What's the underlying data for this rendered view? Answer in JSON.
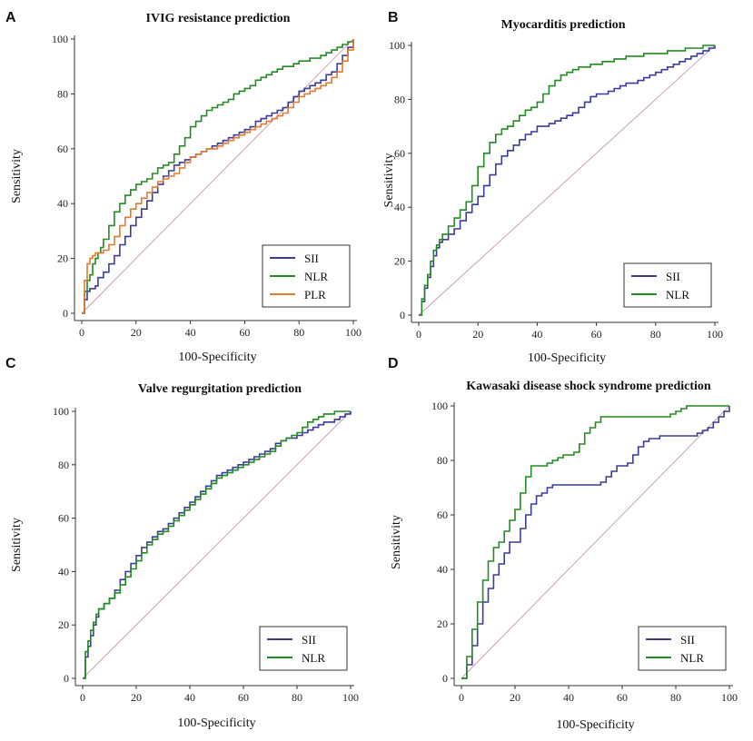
{
  "chart_data": [
    {
      "type": "line",
      "panel": "A",
      "title": "IVIG resistance prediction",
      "xlabel": "100-Specificity",
      "ylabel": "Sensitivity",
      "xlim": [
        0,
        100
      ],
      "ylim": [
        0,
        100
      ],
      "ticks": [
        "0",
        "20",
        "40",
        "60",
        "80",
        "100"
      ],
      "legend_position": "bottom-right",
      "reference_line": true,
      "series": [
        {
          "name": "SII",
          "color": "#3b3b9e",
          "x": [
            0,
            1,
            2,
            3,
            5,
            6,
            8,
            10,
            12,
            14,
            16,
            18,
            20,
            22,
            24,
            26,
            28,
            30,
            32,
            34,
            36,
            38,
            40,
            42,
            44,
            46,
            48,
            50,
            52,
            54,
            56,
            58,
            60,
            62,
            64,
            66,
            68,
            70,
            72,
            74,
            76,
            78,
            80,
            82,
            84,
            86,
            88,
            90,
            92,
            94,
            96,
            98,
            100
          ],
          "y": [
            0,
            5,
            8,
            9,
            10,
            13,
            15,
            18,
            21,
            25,
            28,
            32,
            35,
            38,
            41,
            44,
            47,
            50,
            52,
            54,
            55,
            56,
            57,
            58,
            59,
            60,
            61,
            62,
            63,
            64,
            65,
            66,
            67,
            68,
            70,
            71,
            72,
            73,
            74,
            75,
            77,
            79,
            81,
            82,
            83,
            84,
            85,
            87,
            88,
            91,
            94,
            97,
            100
          ]
        },
        {
          "name": "NLR",
          "color": "#218c21",
          "x": [
            0,
            1,
            2,
            3,
            4,
            5,
            6,
            7,
            8,
            10,
            12,
            14,
            16,
            18,
            20,
            22,
            24,
            26,
            28,
            30,
            32,
            34,
            36,
            38,
            40,
            42,
            44,
            46,
            48,
            50,
            52,
            54,
            56,
            58,
            60,
            62,
            64,
            66,
            68,
            70,
            72,
            74,
            76,
            78,
            80,
            82,
            84,
            86,
            88,
            90,
            92,
            94,
            96,
            98,
            100
          ],
          "y": [
            0,
            8,
            12,
            14,
            18,
            20,
            22,
            24,
            27,
            32,
            37,
            40,
            43,
            45,
            47,
            48,
            49,
            51,
            53,
            54,
            55,
            58,
            61,
            64,
            68,
            70,
            72,
            74,
            75,
            76,
            77,
            78,
            80,
            81,
            82,
            83,
            85,
            86,
            87,
            88,
            89,
            90,
            90,
            91,
            92,
            92,
            93,
            93,
            94,
            95,
            96,
            97,
            98,
            99,
            100
          ]
        },
        {
          "name": "PLR",
          "color": "#e8782b",
          "x": [
            0,
            1,
            2,
            3,
            4,
            5,
            6,
            8,
            10,
            12,
            14,
            16,
            18,
            20,
            22,
            24,
            26,
            28,
            30,
            32,
            34,
            36,
            38,
            40,
            42,
            44,
            46,
            48,
            50,
            52,
            54,
            56,
            58,
            60,
            62,
            64,
            66,
            68,
            70,
            72,
            74,
            76,
            78,
            80,
            82,
            84,
            86,
            88,
            90,
            92,
            94,
            96,
            98,
            100
          ],
          "y": [
            0,
            12,
            18,
            20,
            21,
            22,
            22,
            23,
            25,
            28,
            32,
            35,
            38,
            40,
            42,
            44,
            46,
            48,
            49,
            50,
            51,
            53,
            55,
            57,
            58,
            59,
            60,
            60,
            61,
            62,
            63,
            64,
            65,
            66,
            67,
            68,
            69,
            70,
            71,
            72,
            73,
            75,
            77,
            79,
            80,
            81,
            82,
            83,
            84,
            86,
            88,
            92,
            96,
            100
          ]
        }
      ]
    },
    {
      "type": "line",
      "panel": "B",
      "title": "Myocarditis prediction",
      "xlabel": "100-Specificity",
      "ylabel": "Sensitivity",
      "xlim": [
        0,
        100
      ],
      "ylim": [
        0,
        100
      ],
      "ticks": [
        "0",
        "20",
        "40",
        "60",
        "80",
        "100"
      ],
      "legend_position": "bottom-right",
      "reference_line": true,
      "series": [
        {
          "name": "SII",
          "color": "#3b3b9e",
          "x": [
            0,
            1,
            2,
            3,
            4,
            5,
            6,
            7,
            8,
            10,
            12,
            14,
            16,
            18,
            20,
            22,
            24,
            26,
            28,
            30,
            32,
            34,
            36,
            38,
            40,
            42,
            44,
            46,
            48,
            50,
            52,
            54,
            56,
            58,
            60,
            62,
            64,
            66,
            68,
            70,
            72,
            74,
            76,
            78,
            80,
            82,
            84,
            86,
            88,
            90,
            92,
            94,
            96,
            98,
            100
          ],
          "y": [
            0,
            5,
            10,
            14,
            18,
            22,
            25,
            27,
            28,
            30,
            32,
            35,
            38,
            41,
            44,
            48,
            52,
            56,
            59,
            61,
            63,
            65,
            67,
            68,
            70,
            70,
            71,
            72,
            73,
            74,
            75,
            77,
            79,
            81,
            82,
            82,
            83,
            84,
            85,
            86,
            86,
            87,
            88,
            89,
            90,
            91,
            92,
            93,
            94,
            95,
            96,
            97,
            98,
            99,
            100
          ]
        },
        {
          "name": "NLR",
          "color": "#218c21",
          "x": [
            0,
            1,
            2,
            3,
            4,
            5,
            6,
            7,
            8,
            10,
            12,
            14,
            16,
            18,
            20,
            22,
            24,
            26,
            28,
            30,
            32,
            34,
            36,
            38,
            40,
            42,
            44,
            46,
            48,
            50,
            52,
            54,
            56,
            58,
            60,
            62,
            64,
            66,
            68,
            70,
            72,
            74,
            76,
            78,
            80,
            82,
            84,
            86,
            88,
            90,
            92,
            94,
            96,
            98,
            100
          ],
          "y": [
            0,
            6,
            11,
            15,
            20,
            24,
            26,
            28,
            30,
            33,
            36,
            39,
            42,
            48,
            55,
            60,
            64,
            67,
            69,
            70,
            72,
            74,
            76,
            77,
            79,
            82,
            85,
            87,
            89,
            90,
            91,
            92,
            92,
            93,
            93,
            94,
            94,
            95,
            95,
            96,
            96,
            96,
            97,
            97,
            97,
            97,
            98,
            98,
            98,
            99,
            99,
            99,
            100,
            100,
            100
          ]
        }
      ]
    },
    {
      "type": "line",
      "panel": "C",
      "title": "Valve regurgitation prediction",
      "xlabel": "100-Specificity",
      "ylabel": "Sensitivity",
      "xlim": [
        0,
        100
      ],
      "ylim": [
        0,
        100
      ],
      "ticks": [
        "0",
        "20",
        "40",
        "60",
        "80",
        "100"
      ],
      "legend_position": "bottom-right",
      "reference_line": true,
      "series": [
        {
          "name": "SII",
          "color": "#3b3b9e",
          "x": [
            0,
            1,
            2,
            3,
            4,
            5,
            6,
            8,
            10,
            12,
            14,
            16,
            18,
            20,
            22,
            24,
            26,
            28,
            30,
            32,
            34,
            36,
            38,
            40,
            42,
            44,
            46,
            48,
            50,
            52,
            54,
            56,
            58,
            60,
            62,
            64,
            66,
            68,
            70,
            72,
            74,
            76,
            78,
            80,
            82,
            84,
            86,
            88,
            90,
            92,
            94,
            96,
            98,
            100
          ],
          "y": [
            0,
            8,
            12,
            16,
            20,
            23,
            26,
            28,
            30,
            33,
            37,
            40,
            43,
            46,
            49,
            51,
            53,
            55,
            56,
            58,
            60,
            62,
            64,
            66,
            68,
            70,
            72,
            74,
            76,
            77,
            78,
            79,
            80,
            81,
            82,
            83,
            84,
            85,
            86,
            88,
            89,
            90,
            90,
            91,
            92,
            93,
            94,
            95,
            96,
            96,
            97,
            98,
            99,
            100
          ]
        },
        {
          "name": "NLR",
          "color": "#218c21",
          "x": [
            0,
            1,
            2,
            3,
            4,
            5,
            6,
            8,
            10,
            12,
            14,
            16,
            18,
            20,
            22,
            24,
            26,
            28,
            30,
            32,
            34,
            36,
            38,
            40,
            42,
            44,
            46,
            48,
            50,
            52,
            54,
            56,
            58,
            60,
            62,
            64,
            66,
            68,
            70,
            72,
            74,
            76,
            78,
            80,
            82,
            84,
            86,
            88,
            90,
            92,
            94,
            96,
            98,
            100
          ],
          "y": [
            0,
            10,
            14,
            18,
            21,
            24,
            26,
            28,
            30,
            32,
            35,
            38,
            41,
            44,
            47,
            50,
            52,
            54,
            55,
            57,
            59,
            61,
            63,
            65,
            67,
            69,
            71,
            73,
            75,
            76,
            77,
            78,
            79,
            80,
            81,
            82,
            83,
            84,
            85,
            87,
            89,
            90,
            91,
            92,
            94,
            96,
            97,
            98,
            99,
            99,
            100,
            100,
            100,
            100
          ]
        }
      ]
    },
    {
      "type": "line",
      "panel": "D",
      "title": "Kawasaki disease shock syndrome prediction",
      "xlabel": "100-Specificity",
      "ylabel": "Sensitivity",
      "xlim": [
        0,
        100
      ],
      "ylim": [
        0,
        100
      ],
      "ticks": [
        "0",
        "20",
        "40",
        "60",
        "80",
        "100"
      ],
      "legend_position": "bottom-right",
      "reference_line": true,
      "series": [
        {
          "name": "SII",
          "color": "#3b3b9e",
          "x": [
            0,
            2,
            4,
            6,
            8,
            10,
            12,
            14,
            16,
            18,
            20,
            22,
            24,
            26,
            28,
            30,
            32,
            34,
            36,
            38,
            40,
            42,
            44,
            46,
            48,
            50,
            52,
            54,
            56,
            58,
            60,
            62,
            64,
            66,
            68,
            70,
            72,
            74,
            76,
            78,
            80,
            82,
            84,
            86,
            88,
            90,
            92,
            94,
            96,
            98,
            100
          ],
          "y": [
            0,
            5,
            12,
            20,
            28,
            33,
            38,
            42,
            46,
            50,
            50,
            55,
            60,
            64,
            67,
            68,
            70,
            71,
            71,
            71,
            71,
            71,
            71,
            71,
            71,
            71,
            72,
            74,
            76,
            78,
            78,
            79,
            82,
            85,
            87,
            88,
            88,
            89,
            89,
            89,
            89,
            89,
            89,
            89,
            90,
            91,
            92,
            94,
            96,
            98,
            100
          ]
        },
        {
          "name": "NLR",
          "color": "#218c21",
          "x": [
            0,
            2,
            4,
            6,
            8,
            10,
            12,
            14,
            16,
            18,
            20,
            22,
            24,
            26,
            28,
            30,
            32,
            34,
            36,
            38,
            40,
            42,
            44,
            46,
            48,
            50,
            52,
            54,
            56,
            58,
            60,
            62,
            64,
            66,
            68,
            70,
            72,
            74,
            76,
            78,
            80,
            82,
            84,
            86,
            88,
            90,
            92,
            94,
            96,
            98,
            100
          ],
          "y": [
            0,
            8,
            18,
            28,
            36,
            43,
            48,
            50,
            54,
            58,
            62,
            68,
            74,
            78,
            78,
            78,
            79,
            80,
            81,
            82,
            82,
            83,
            86,
            90,
            92,
            94,
            96,
            96,
            96,
            96,
            96,
            96,
            96,
            96,
            96,
            96,
            96,
            96,
            96,
            97,
            98,
            99,
            100,
            100,
            100,
            100,
            100,
            100,
            100,
            100,
            100
          ]
        }
      ]
    }
  ]
}
